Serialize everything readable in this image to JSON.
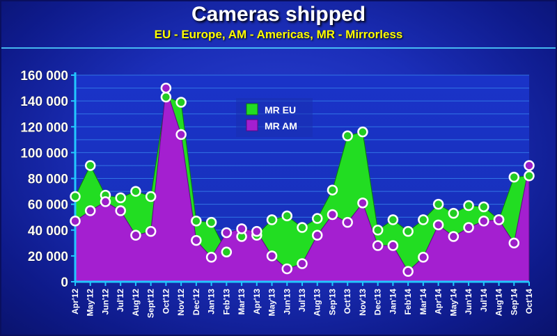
{
  "title": "Cameras shipped",
  "subtitle": "EU - Europe, AM - Americas, MR - Mirrorless",
  "colors": {
    "eu_fill": "#22dd22",
    "eu_marker": "#22cc22",
    "am_fill": "#a41fd0",
    "am_marker": "#9b1ec8",
    "axis": "#22c8ff"
  },
  "chart_data": {
    "type": "area",
    "categories": [
      "Apr'12",
      "May'12",
      "Jun'12",
      "Jul'12",
      "Aug'12",
      "Sept'12",
      "Oct'12",
      "Nov'12",
      "Dec'12",
      "Jan'13",
      "Feb'13",
      "Mar'13",
      "Apr'13",
      "May'13",
      "Jun'13",
      "Jul'13",
      "Aug'13",
      "Sep'13",
      "Oct'13",
      "Nov'13",
      "Dec'13",
      "Jan'14",
      "Feb'14",
      "Mar'14",
      "Apr'14",
      "May'14",
      "Jun'14",
      "Jul'14",
      "Aug'14",
      "Sep'14",
      "Oct'14"
    ],
    "series": [
      {
        "name": "MR EU",
        "values": [
          66000,
          90000,
          67000,
          65000,
          70000,
          66000,
          143000,
          139000,
          47000,
          46000,
          23000,
          35000,
          36000,
          48000,
          51000,
          42000,
          49000,
          71000,
          113000,
          116000,
          40000,
          48000,
          39000,
          48000,
          60000,
          53000,
          59000,
          58000,
          48000,
          81000,
          82000
        ]
      },
      {
        "name": "MR AM",
        "values": [
          47000,
          55000,
          62000,
          55000,
          36000,
          39000,
          150000,
          114000,
          32000,
          19000,
          38000,
          41000,
          39000,
          20000,
          10000,
          14000,
          36000,
          52000,
          46000,
          61000,
          28000,
          28000,
          8000,
          19000,
          44000,
          35000,
          42000,
          47000,
          48000,
          30000,
          90000
        ]
      }
    ],
    "y_ticks": [
      "0",
      "20 000",
      "40 000",
      "60 000",
      "80 000",
      "100 000",
      "120 000",
      "140 000",
      "160 000"
    ],
    "ylim": [
      0,
      160000
    ],
    "grid": true,
    "legend_position": "top-center"
  }
}
